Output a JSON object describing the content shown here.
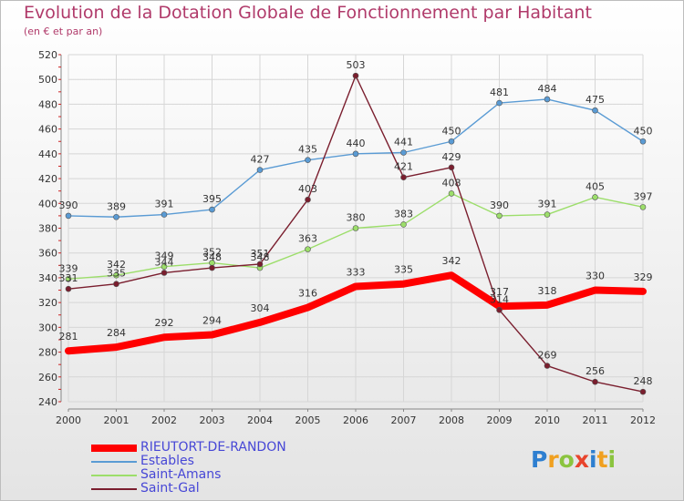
{
  "header": {
    "title": "Evolution de la Dotation Globale de Fonctionnement par Habitant",
    "subtitle": "(en € et par an)"
  },
  "logo": {
    "text": "Proxiti",
    "colors": [
      "#2e7fd0",
      "#f0a020",
      "#8bc43f",
      "#e8442c"
    ]
  },
  "chart_data": {
    "type": "line",
    "x": [
      "2000",
      "2001",
      "2002",
      "2003",
      "2004",
      "2005",
      "2006",
      "2007",
      "2008",
      "2009",
      "2010",
      "2011",
      "2012"
    ],
    "ylim": [
      240,
      520
    ],
    "yticks": [
      240,
      260,
      280,
      300,
      320,
      340,
      360,
      380,
      400,
      420,
      440,
      460,
      480,
      500,
      520
    ],
    "grid": true,
    "legend_position": "bottom-left",
    "series": [
      {
        "name": "Estables",
        "color": "#5a9bd4",
        "width": 1.4,
        "values": [
          390,
          389,
          391,
          395,
          427,
          435,
          440,
          441,
          450,
          481,
          484,
          475,
          450
        ]
      },
      {
        "name": "Saint-Amans",
        "color": "#9cde6a",
        "width": 1.4,
        "values": [
          339,
          342,
          349,
          352,
          348,
          363,
          380,
          383,
          408,
          390,
          391,
          405,
          397
        ]
      },
      {
        "name": "Saint-Gal",
        "color": "#7a1e2e",
        "width": 1.4,
        "values": [
          331,
          335,
          344,
          348,
          351,
          403,
          503,
          421,
          429,
          314,
          269,
          256,
          248
        ]
      },
      {
        "name": "RIEUTORT-DE-RANDON",
        "color": "#ff0000",
        "width": 8,
        "values": [
          281,
          284,
          292,
          294,
          304,
          316,
          333,
          335,
          342,
          317,
          318,
          330,
          329
        ]
      }
    ],
    "legend_order": [
      "RIEUTORT-DE-RANDON",
      "Estables",
      "Saint-Amans",
      "Saint-Gal"
    ]
  }
}
